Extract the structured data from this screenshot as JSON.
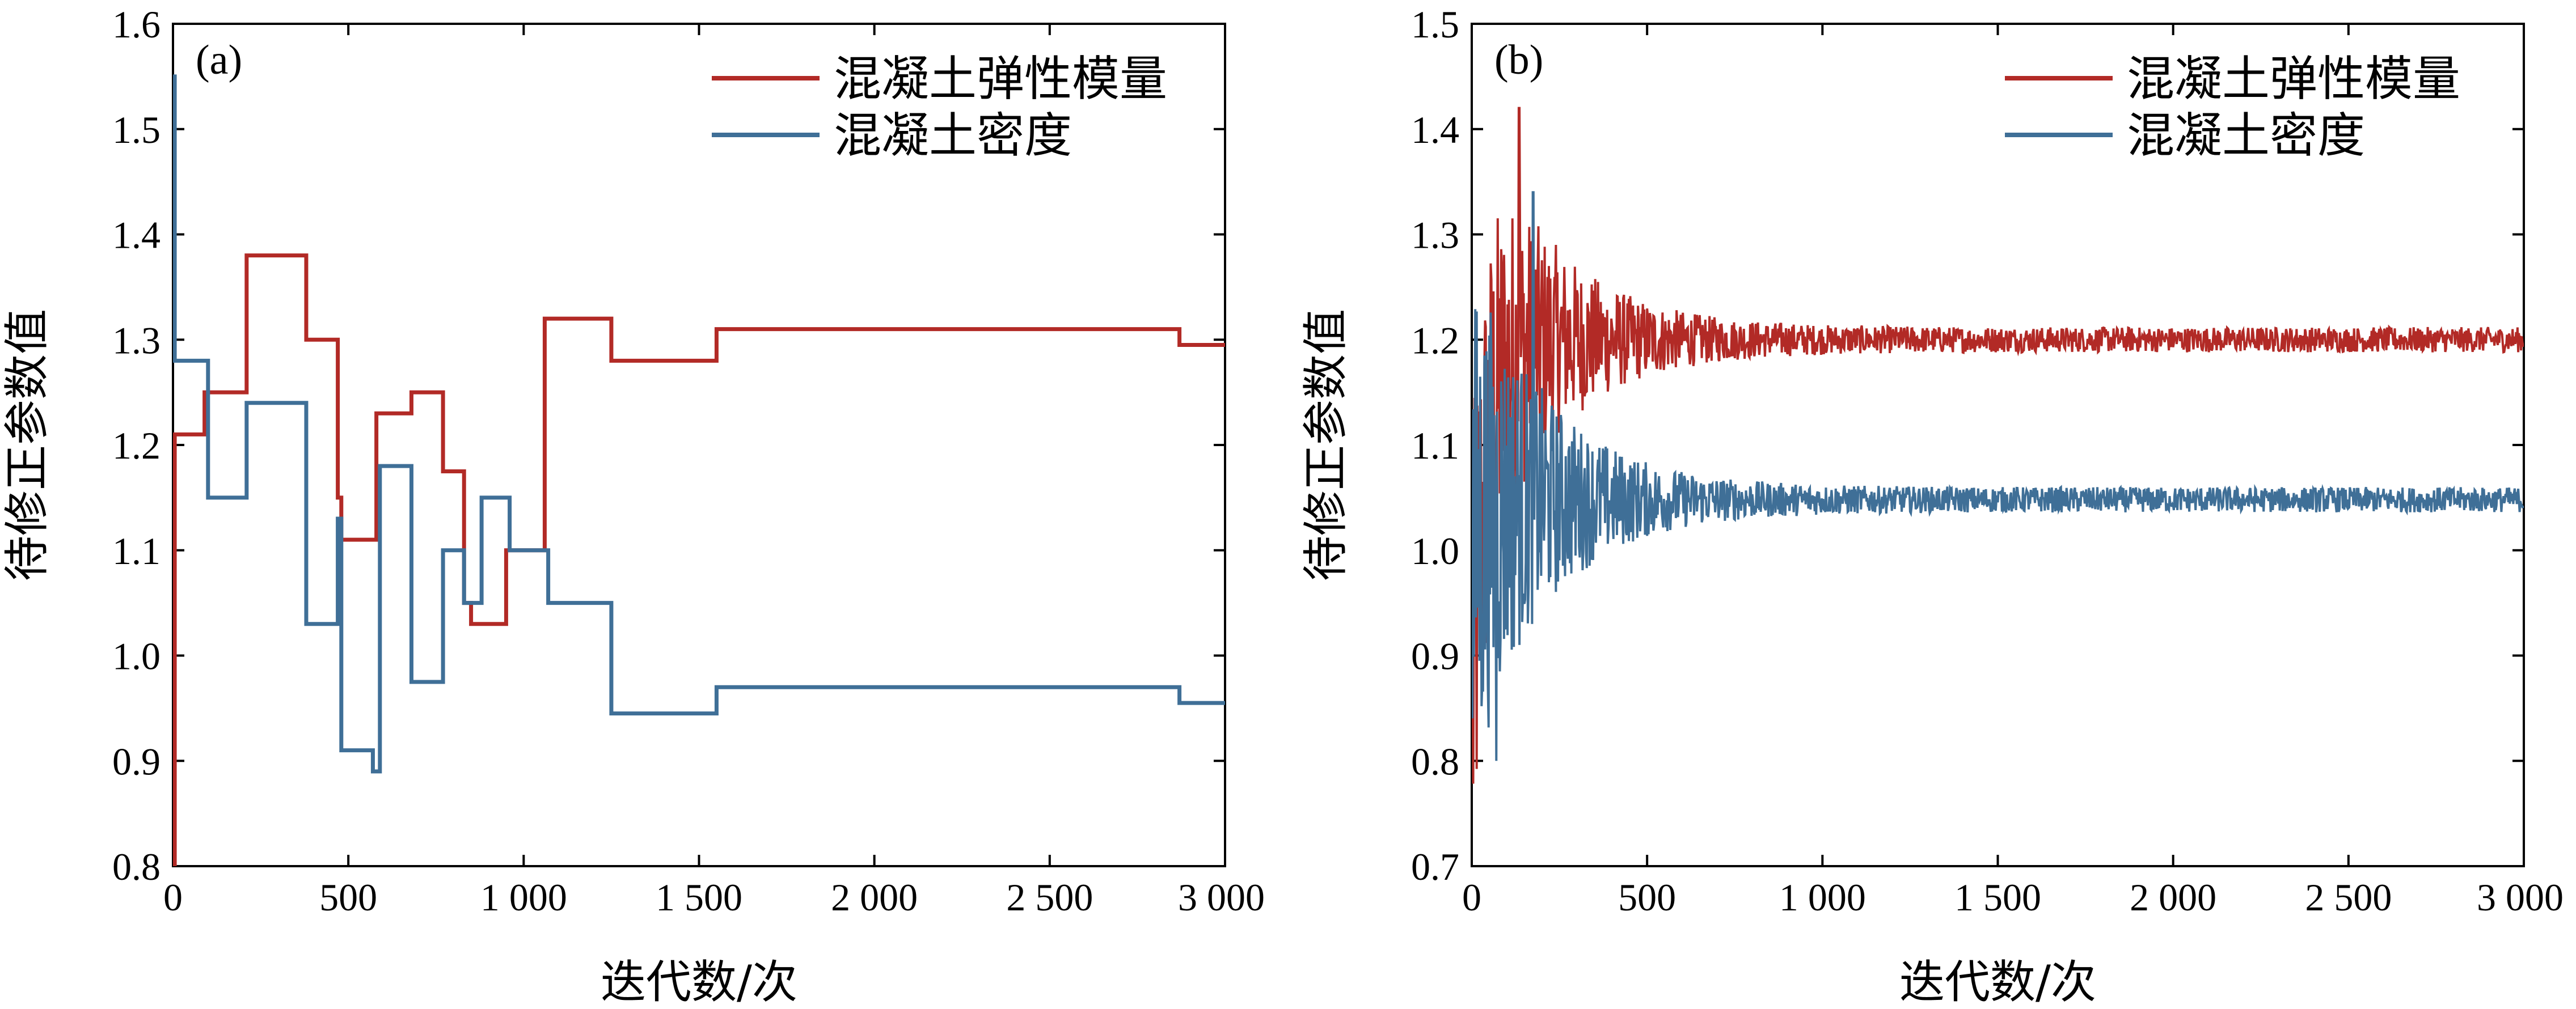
{
  "chart_data": [
    {
      "type": "line",
      "panel_label": "(a)",
      "xlabel": "迭代数/次",
      "ylabel": "待修正参数值",
      "xlim": [
        0,
        3000
      ],
      "ylim": [
        0.8,
        1.6
      ],
      "x_ticks": [
        0,
        500,
        1000,
        1500,
        2000,
        2500,
        3000
      ],
      "x_tick_labels": [
        "0",
        "500",
        "1 000",
        "1 500",
        "2 000",
        "2 500",
        "3 000"
      ],
      "y_ticks": [
        0.8,
        0.9,
        1.0,
        1.1,
        1.2,
        1.3,
        1.4,
        1.5,
        1.6
      ],
      "y_tick_labels": [
        "0.8",
        "0.9",
        "1.0",
        "1.1",
        "1.2",
        "1.3",
        "1.4",
        "1.5",
        "1.6"
      ],
      "legend_position": "top-right",
      "series": [
        {
          "name": "混凝土弹性模量",
          "color": "#b22a26",
          "step": true,
          "x": [
            0,
            5,
            90,
            210,
            380,
            470,
            480,
            580,
            600,
            680,
            770,
            830,
            850,
            900,
            950,
            1060,
            1250,
            1550,
            2850,
            2870,
            3000
          ],
          "y": [
            0.8,
            1.21,
            1.25,
            1.38,
            1.3,
            1.15,
            1.11,
            1.23,
            1.23,
            1.25,
            1.175,
            1.05,
            1.03,
            1.03,
            1.1,
            1.32,
            1.28,
            1.31,
            1.31,
            1.295,
            1.295
          ]
        },
        {
          "name": "混凝土密度",
          "color": "#3f6f97",
          "step": true,
          "x": [
            0,
            5,
            100,
            210,
            380,
            470,
            480,
            570,
            590,
            680,
            770,
            830,
            880,
            960,
            1070,
            1250,
            1550,
            2850,
            2870,
            3000
          ],
          "y": [
            1.55,
            1.28,
            1.15,
            1.24,
            1.03,
            1.13,
            0.91,
            0.89,
            1.18,
            0.975,
            1.1,
            1.05,
            1.15,
            1.1,
            1.05,
            0.945,
            0.97,
            0.97,
            0.955,
            0.955
          ]
        }
      ]
    },
    {
      "type": "line",
      "panel_label": "(b)",
      "xlabel": "迭代数/次",
      "ylabel": "待修正参数值",
      "xlim": [
        0,
        3000
      ],
      "ylim": [
        0.7,
        1.5
      ],
      "x_ticks": [
        0,
        500,
        1000,
        1500,
        2000,
        2500,
        3000
      ],
      "x_tick_labels": [
        "0",
        "500",
        "1 000",
        "1 500",
        "2 000",
        "2 500",
        "3 000"
      ],
      "y_ticks": [
        0.7,
        0.8,
        0.9,
        1.0,
        1.1,
        1.2,
        1.3,
        1.4,
        1.5
      ],
      "y_tick_labels": [
        "0.7",
        "0.8",
        "0.9",
        "1.0",
        "1.1",
        "1.2",
        "1.3",
        "1.4",
        "1.5"
      ],
      "legend_position": "top-right",
      "series": [
        {
          "name": "混凝土弹性模量",
          "color": "#b22a26",
          "noisy": true,
          "start_value": 0.84,
          "converged_value": 1.2,
          "initial_amplitude": 0.25,
          "final_amplitude": 0.012,
          "settle_iteration": 700,
          "peak": {
            "x": 135,
            "y": 1.42
          }
        },
        {
          "name": "混凝土密度",
          "color": "#3f6f97",
          "noisy": true,
          "start_value": 1.0,
          "converged_value": 1.048,
          "initial_amplitude": 0.25,
          "final_amplitude": 0.012,
          "settle_iteration": 700,
          "peak": {
            "x": 175,
            "y": 1.34
          },
          "trough": {
            "x": 70,
            "y": 0.8
          }
        }
      ]
    }
  ]
}
